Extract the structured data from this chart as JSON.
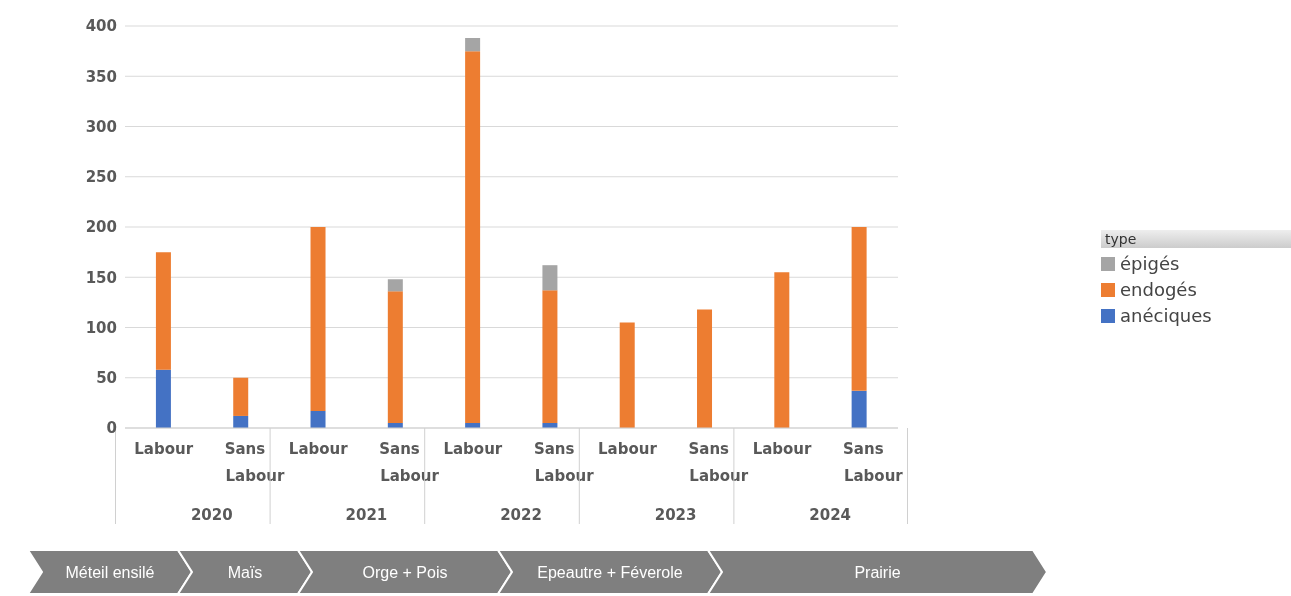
{
  "chart_data": {
    "type": "bar",
    "stacked": true,
    "categories": [
      "Labour",
      "Sans Labour",
      "Labour",
      "Sans Labour",
      "Labour",
      "Sans Labour",
      "Labour",
      "Sans Labour",
      "Labour",
      "Sans Labour"
    ],
    "series": [
      {
        "name": "anéciques",
        "color": "#4472c4",
        "values": [
          58,
          12,
          17,
          5,
          5,
          5,
          0,
          0,
          0,
          37
        ]
      },
      {
        "name": "endogés",
        "color": "#ed7d31",
        "values": [
          117,
          38,
          183,
          131,
          370,
          132,
          105,
          118,
          155,
          163
        ]
      },
      {
        "name": "épigés",
        "color": "#a5a5a5",
        "values": [
          0,
          0,
          0,
          12,
          13,
          25,
          0,
          0,
          0,
          0
        ]
      }
    ],
    "ylim": [
      0,
      400
    ],
    "yticks": [
      0,
      50,
      100,
      150,
      200,
      250,
      300,
      350,
      400
    ],
    "grid": "y",
    "legend": "right",
    "legend_title": "type",
    "annotations": [
      "2020",
      "2021",
      "2022",
      "2023",
      "2024",
      "Méteil ensilé",
      "Maïs",
      "Orge + Pois",
      "Epeautre + Féverole",
      "Prairie"
    ]
  }
}
